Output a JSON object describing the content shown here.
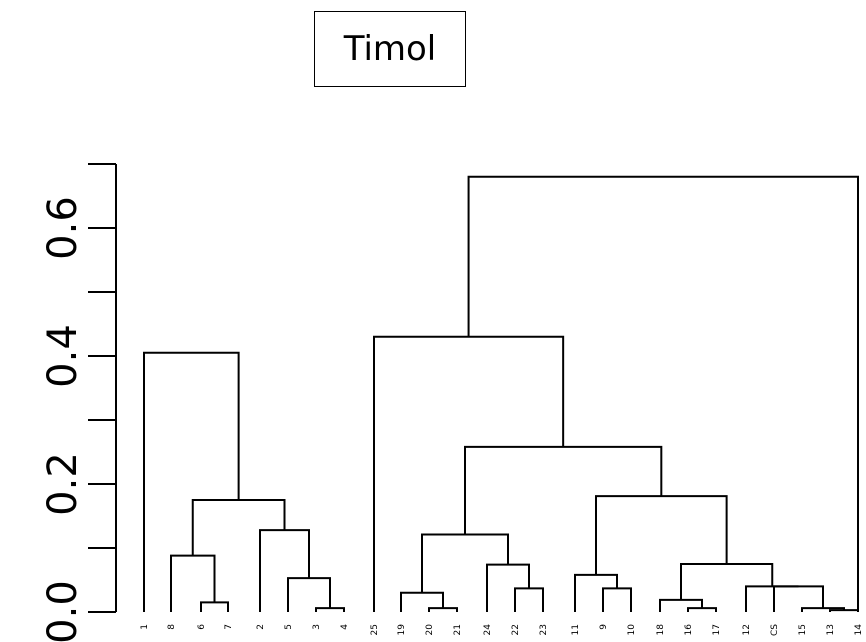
{
  "chart_data": {
    "type": "dendrogram",
    "title": "Timol",
    "ylim": [
      0,
      0.7
    ],
    "yticks": [
      0.0,
      0.1,
      0.2,
      0.3,
      0.4,
      0.5,
      0.6,
      0.7
    ],
    "ytick_labels": [
      "0.0",
      "0.2",
      "0.4",
      "0.6"
    ],
    "leaves": [
      "1",
      "8",
      "6",
      "7",
      "2",
      "5",
      "3",
      "4",
      "25",
      "19",
      "20",
      "21",
      "24",
      "22",
      "23",
      "11",
      "9",
      "10",
      "18",
      "16",
      "17",
      "12",
      "CS",
      "15",
      "13",
      "14"
    ],
    "merges": [
      {
        "a": "6",
        "b": "7",
        "height": 0.015
      },
      {
        "a": "8",
        "b": "6-7",
        "height": 0.088
      },
      {
        "a": "3",
        "b": "4",
        "height": 0.006
      },
      {
        "a": "5",
        "b": "3-4",
        "height": 0.053
      },
      {
        "a": "2",
        "b": "5-3-4",
        "height": 0.128
      },
      {
        "a": "8-6-7",
        "b": "2-5-3-4",
        "height": 0.175
      },
      {
        "a": "1",
        "b": "8-6-7-2-5-3-4",
        "height": 0.405
      },
      {
        "a": "20",
        "b": "21",
        "height": 0.006
      },
      {
        "a": "19",
        "b": "20-21",
        "height": 0.03
      },
      {
        "a": "22",
        "b": "23",
        "height": 0.037
      },
      {
        "a": "24",
        "b": "22-23",
        "height": 0.074
      },
      {
        "a": "19-20-21",
        "b": "24-22-23",
        "height": 0.121
      },
      {
        "a": "9",
        "b": "10",
        "height": 0.037
      },
      {
        "a": "11",
        "b": "9-10",
        "height": 0.058
      },
      {
        "a": "16",
        "b": "17",
        "height": 0.006
      },
      {
        "a": "18",
        "b": "16-17",
        "height": 0.019
      },
      {
        "a": "13",
        "b": "14",
        "height": 0.003
      },
      {
        "a": "15",
        "b": "13-14",
        "height": 0.006
      },
      {
        "a": "CS",
        "b": "15-13-14",
        "height": 0.04
      },
      {
        "a": "12",
        "b": "CS-15-13-14",
        "height": 0.04
      },
      {
        "a": "18-16-17",
        "b": "12-CS-15-13-14",
        "height": 0.075
      },
      {
        "a": "11-9-10",
        "b": "18-16-17-12-CS-15-13-14",
        "height": 0.181
      },
      {
        "a": "19-20-21-24-22-23",
        "b": "11-9-10-18-16-17-12-CS-15-13-14",
        "height": 0.258
      },
      {
        "a": "25",
        "b": "19-...-14",
        "height": 0.43
      },
      {
        "a": "1-...-4",
        "b": "25-...-14",
        "height": 0.68
      }
    ]
  }
}
